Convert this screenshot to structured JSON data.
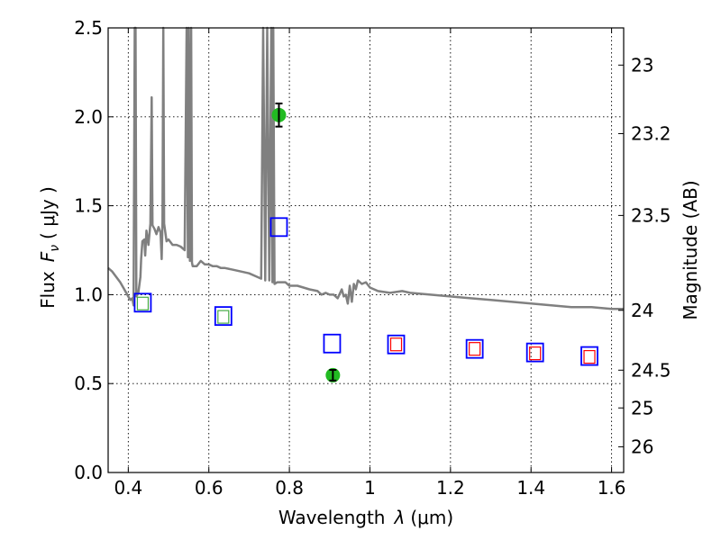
{
  "chart_data": {
    "type": "scatter",
    "xlabel_prefix": "Wavelength",
    "xlabel_var": "λ",
    "xlabel_unit": "(μm)",
    "ylabel_prefix": "Flux",
    "ylabel_var": "F",
    "ylabel_sub": "ν",
    "ylabel_unit": "( μJy )",
    "y2label": "Magnitude (AB)",
    "xlim": [
      0.35,
      1.63
    ],
    "ylim": [
      0.0,
      2.5
    ],
    "grid": true,
    "x_ticks": [
      {
        "value": 0.4,
        "label": "0.4"
      },
      {
        "value": 0.6,
        "label": "0.6"
      },
      {
        "value": 0.8,
        "label": "0.8"
      },
      {
        "value": 1.0,
        "label": "1"
      },
      {
        "value": 1.2,
        "label": "1.2"
      },
      {
        "value": 1.4,
        "label": "1.4"
      },
      {
        "value": 1.6,
        "label": "1.6"
      }
    ],
    "y_ticks": [
      {
        "value": 0.0,
        "label": "0.0"
      },
      {
        "value": 0.5,
        "label": "0.5"
      },
      {
        "value": 1.0,
        "label": "1.0"
      },
      {
        "value": 1.5,
        "label": "1.5"
      },
      {
        "value": 2.0,
        "label": "2.0"
      },
      {
        "value": 2.5,
        "label": "2.5"
      }
    ],
    "y2_ticks": [
      {
        "value": 23,
        "label": "23"
      },
      {
        "value": 23.2,
        "label": "23.2"
      },
      {
        "value": 23.5,
        "label": "23.5"
      },
      {
        "value": 24,
        "label": "24"
      },
      {
        "value": 24.5,
        "label": "24.5"
      },
      {
        "value": 25,
        "label": "25"
      },
      {
        "value": 26,
        "label": "26"
      }
    ],
    "series": [
      {
        "kind": "spectrum",
        "color": "#808080",
        "points": [
          [
            0.35,
            1.15
          ],
          [
            0.36,
            1.13
          ],
          [
            0.37,
            1.1
          ],
          [
            0.38,
            1.07
          ],
          [
            0.39,
            1.03
          ],
          [
            0.4,
            0.99
          ],
          [
            0.405,
            0.97
          ],
          [
            0.41,
            0.98
          ],
          [
            0.413,
            0.94
          ],
          [
            0.416,
            2.5
          ],
          [
            0.418,
            2.5
          ],
          [
            0.42,
            0.99
          ],
          [
            0.425,
            1.01
          ],
          [
            0.43,
            1.1
          ],
          [
            0.432,
            1.2
          ],
          [
            0.435,
            1.3
          ],
          [
            0.44,
            1.31
          ],
          [
            0.442,
            1.22
          ],
          [
            0.445,
            1.36
          ],
          [
            0.45,
            1.28
          ],
          [
            0.455,
            1.4
          ],
          [
            0.458,
            2.11
          ],
          [
            0.46,
            1.39
          ],
          [
            0.465,
            1.37
          ],
          [
            0.47,
            1.34
          ],
          [
            0.475,
            1.38
          ],
          [
            0.48,
            1.35
          ],
          [
            0.483,
            1.2
          ],
          [
            0.485,
            1.41
          ],
          [
            0.487,
            2.5
          ],
          [
            0.489,
            1.4
          ],
          [
            0.495,
            1.3
          ],
          [
            0.5,
            1.31
          ],
          [
            0.51,
            1.28
          ],
          [
            0.52,
            1.28
          ],
          [
            0.53,
            1.27
          ],
          [
            0.535,
            1.26
          ],
          [
            0.54,
            1.25
          ],
          [
            0.545,
            2.5
          ],
          [
            0.548,
            1.21
          ],
          [
            0.55,
            2.5
          ],
          [
            0.553,
            1.19
          ],
          [
            0.556,
            2.5
          ],
          [
            0.558,
            1.18
          ],
          [
            0.56,
            1.16
          ],
          [
            0.57,
            1.16
          ],
          [
            0.58,
            1.19
          ],
          [
            0.59,
            1.17
          ],
          [
            0.6,
            1.17
          ],
          [
            0.61,
            1.16
          ],
          [
            0.62,
            1.16
          ],
          [
            0.63,
            1.15
          ],
          [
            0.64,
            1.15
          ],
          [
            0.66,
            1.14
          ],
          [
            0.68,
            1.13
          ],
          [
            0.7,
            1.12
          ],
          [
            0.72,
            1.1
          ],
          [
            0.73,
            1.09
          ],
          [
            0.735,
            2.5
          ],
          [
            0.74,
            1.08
          ],
          [
            0.745,
            2.5
          ],
          [
            0.75,
            1.08
          ],
          [
            0.755,
            2.5
          ],
          [
            0.758,
            1.07
          ],
          [
            0.76,
            2.5
          ],
          [
            0.763,
            1.06
          ],
          [
            0.77,
            1.07
          ],
          [
            0.79,
            1.07
          ],
          [
            0.8,
            1.05
          ],
          [
            0.82,
            1.05
          ],
          [
            0.85,
            1.03
          ],
          [
            0.87,
            1.02
          ],
          [
            0.88,
            1.0
          ],
          [
            0.89,
            1.01
          ],
          [
            0.9,
            1.0
          ],
          [
            0.91,
            1.0
          ],
          [
            0.92,
            0.98
          ],
          [
            0.93,
            1.03
          ],
          [
            0.935,
            0.99
          ],
          [
            0.94,
            1.0
          ],
          [
            0.945,
            0.95
          ],
          [
            0.95,
            1.05
          ],
          [
            0.955,
            0.96
          ],
          [
            0.96,
            1.06
          ],
          [
            0.965,
            1.03
          ],
          [
            0.97,
            1.08
          ],
          [
            0.98,
            1.06
          ],
          [
            0.99,
            1.07
          ],
          [
            1.0,
            1.04
          ],
          [
            1.02,
            1.02
          ],
          [
            1.05,
            1.01
          ],
          [
            1.08,
            1.02
          ],
          [
            1.1,
            1.01
          ],
          [
            1.15,
            1.0
          ],
          [
            1.2,
            0.99
          ],
          [
            1.25,
            0.98
          ],
          [
            1.3,
            0.97
          ],
          [
            1.35,
            0.96
          ],
          [
            1.4,
            0.95
          ],
          [
            1.45,
            0.94
          ],
          [
            1.5,
            0.93
          ],
          [
            1.55,
            0.93
          ],
          [
            1.6,
            0.92
          ],
          [
            1.63,
            0.92
          ]
        ]
      },
      {
        "kind": "squares",
        "color": "#0000ff",
        "points": [
          [
            0.436,
            0.955
          ],
          [
            0.636,
            0.88
          ],
          [
            0.774,
            1.38
          ],
          [
            0.906,
            0.725
          ],
          [
            1.065,
            0.72
          ],
          [
            1.26,
            0.695
          ],
          [
            1.41,
            0.675
          ],
          [
            1.545,
            0.655
          ]
        ]
      },
      {
        "kind": "squares_small",
        "color": "#44aa44",
        "points": [
          [
            0.436,
            0.95
          ],
          [
            0.636,
            0.875
          ]
        ]
      },
      {
        "kind": "squares_small",
        "color": "#ff0000",
        "points": [
          [
            1.065,
            0.72
          ],
          [
            1.26,
            0.695
          ],
          [
            1.41,
            0.67
          ],
          [
            1.545,
            0.65
          ]
        ]
      },
      {
        "kind": "circles_err",
        "color": "#22bb22",
        "points": [
          [
            0.774,
            2.01,
            0.065
          ],
          [
            0.908,
            0.547,
            0.03
          ]
        ]
      }
    ]
  }
}
